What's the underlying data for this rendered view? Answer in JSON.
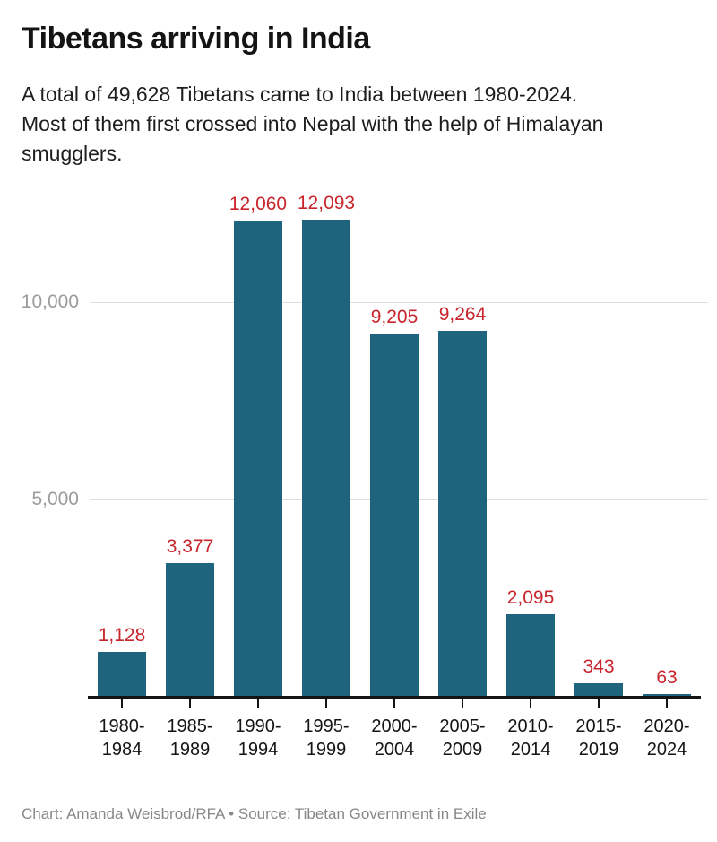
{
  "header": {
    "title": "Tibetans arriving in India",
    "subtitle": "A total of 49,628 Tibetans came to India between 1980-2024. Most of them first crossed into Nepal with the help of Himalayan smugglers.",
    "subtitle_lines": [
      "A total of 49,628 Tibetans came to India between 1980-2024.",
      "Most of them first crossed into Nepal with the help of Himalayan",
      "smugglers."
    ]
  },
  "footer": {
    "credit": "Chart: Amanda Weisbrod/RFA • Source: Tibetan Government in Exile"
  },
  "colors": {
    "bar": "#1e647d",
    "value_label": "#c8252c",
    "gridline": "#dedede",
    "y_tick_label": "#9b9b9b",
    "axis": "#141414",
    "title": "#141414",
    "footer": "#878787"
  },
  "chart_data": {
    "type": "bar",
    "title": "Tibetans arriving in India",
    "subtitle": "A total of 49,628 Tibetans came to India between 1980-2024. Most of them first crossed into Nepal with the help of Himalayan smugglers.",
    "categories": [
      "1980-1984",
      "1985-1989",
      "1990-1994",
      "1995-1999",
      "2000-2004",
      "2005-2009",
      "2010-2014",
      "2015-2019",
      "2020-2024"
    ],
    "category_label_lines": [
      [
        "1980-",
        "1984"
      ],
      [
        "1985-",
        "1989"
      ],
      [
        "1990-",
        "1994"
      ],
      [
        "1995-",
        "1999"
      ],
      [
        "2000-",
        "2004"
      ],
      [
        "2005-",
        "2009"
      ],
      [
        "2010-",
        "2014"
      ],
      [
        "2015-",
        "2019"
      ],
      [
        "2020-",
        "2024"
      ]
    ],
    "values": [
      1128,
      3377,
      12060,
      12093,
      9205,
      9264,
      2095,
      343,
      63
    ],
    "value_labels": [
      "1,128",
      "3,377",
      "12,060",
      "12,093",
      "9,205",
      "9,264",
      "2,095",
      "343",
      "63"
    ],
    "total": "49,628",
    "xlabel": "",
    "ylabel": "",
    "ylim": [
      0,
      13100
    ],
    "yticks": [
      {
        "value": 5000,
        "label": "5,000"
      },
      {
        "value": 10000,
        "label": "10,000"
      }
    ],
    "grid": "horizontal",
    "legend": "none",
    "bar_color": "#1e647d",
    "value_label_color": "#c8252c"
  }
}
